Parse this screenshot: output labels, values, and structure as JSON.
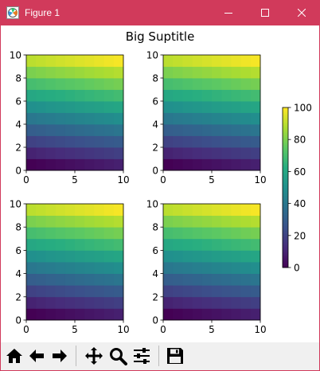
{
  "window": {
    "title": "Figure 1",
    "title_bar_color": "#d13a5b",
    "title_text_color": "#ffffff",
    "border_color": "#d13a5b",
    "buttons": [
      {
        "name": "minimize-button",
        "icon": "minimize-icon"
      },
      {
        "name": "maximize-button",
        "icon": "maximize-icon"
      },
      {
        "name": "close-button",
        "icon": "close-icon"
      }
    ]
  },
  "figure": {
    "suptitle": "Big Suptitle",
    "colormap": "viridis"
  },
  "chart_data": [
    {
      "type": "heatmap",
      "position": "top-left",
      "x_range": [
        0,
        10
      ],
      "y_range": [
        0,
        10
      ],
      "x_ticks": [
        "0",
        "5",
        "10"
      ],
      "y_ticks": [
        "0",
        "2",
        "4",
        "6",
        "8",
        "10"
      ],
      "value_range": [
        0,
        100
      ],
      "row_count": 10,
      "col_count": 10,
      "value_formula": "10 * row + col"
    },
    {
      "type": "heatmap",
      "position": "top-right",
      "x_range": [
        0,
        10
      ],
      "y_range": [
        0,
        10
      ],
      "x_ticks": [
        "0",
        "5",
        "10"
      ],
      "y_ticks": [
        "0",
        "2",
        "4",
        "6",
        "8",
        "10"
      ],
      "value_range": [
        0,
        100
      ],
      "row_count": 10,
      "col_count": 10,
      "value_formula": "10 * row + col"
    },
    {
      "type": "heatmap",
      "position": "bottom-left",
      "x_range": [
        0,
        10
      ],
      "y_range": [
        0,
        10
      ],
      "x_ticks": [
        "0",
        "5",
        "10"
      ],
      "y_ticks": [
        "0",
        "2",
        "4",
        "6",
        "8",
        "10"
      ],
      "value_range": [
        0,
        100
      ],
      "row_count": 10,
      "col_count": 10,
      "value_formula": "10 * row + col"
    },
    {
      "type": "heatmap",
      "position": "bottom-right",
      "x_range": [
        0,
        10
      ],
      "y_range": [
        0,
        10
      ],
      "x_ticks": [
        "0",
        "5",
        "10"
      ],
      "y_ticks": [
        "0",
        "2",
        "4",
        "6",
        "8",
        "10"
      ],
      "value_range": [
        0,
        100
      ],
      "row_count": 10,
      "col_count": 10,
      "value_formula": "10 * row + col"
    }
  ],
  "colorbar": {
    "range": [
      0,
      100
    ],
    "ticks": [
      "0",
      "20",
      "40",
      "60",
      "80",
      "100"
    ]
  },
  "toolbar": {
    "buttons": [
      {
        "name": "home-button",
        "icon": "home-icon"
      },
      {
        "name": "back-button",
        "icon": "arrow-left-icon"
      },
      {
        "name": "forward-button",
        "icon": "arrow-right-icon"
      },
      {
        "name": "pan-button",
        "icon": "move-icon"
      },
      {
        "name": "zoom-button",
        "icon": "magnifier-icon"
      },
      {
        "name": "configure-subplots-button",
        "icon": "sliders-icon"
      },
      {
        "name": "save-button",
        "icon": "floppy-disk-icon"
      }
    ]
  }
}
